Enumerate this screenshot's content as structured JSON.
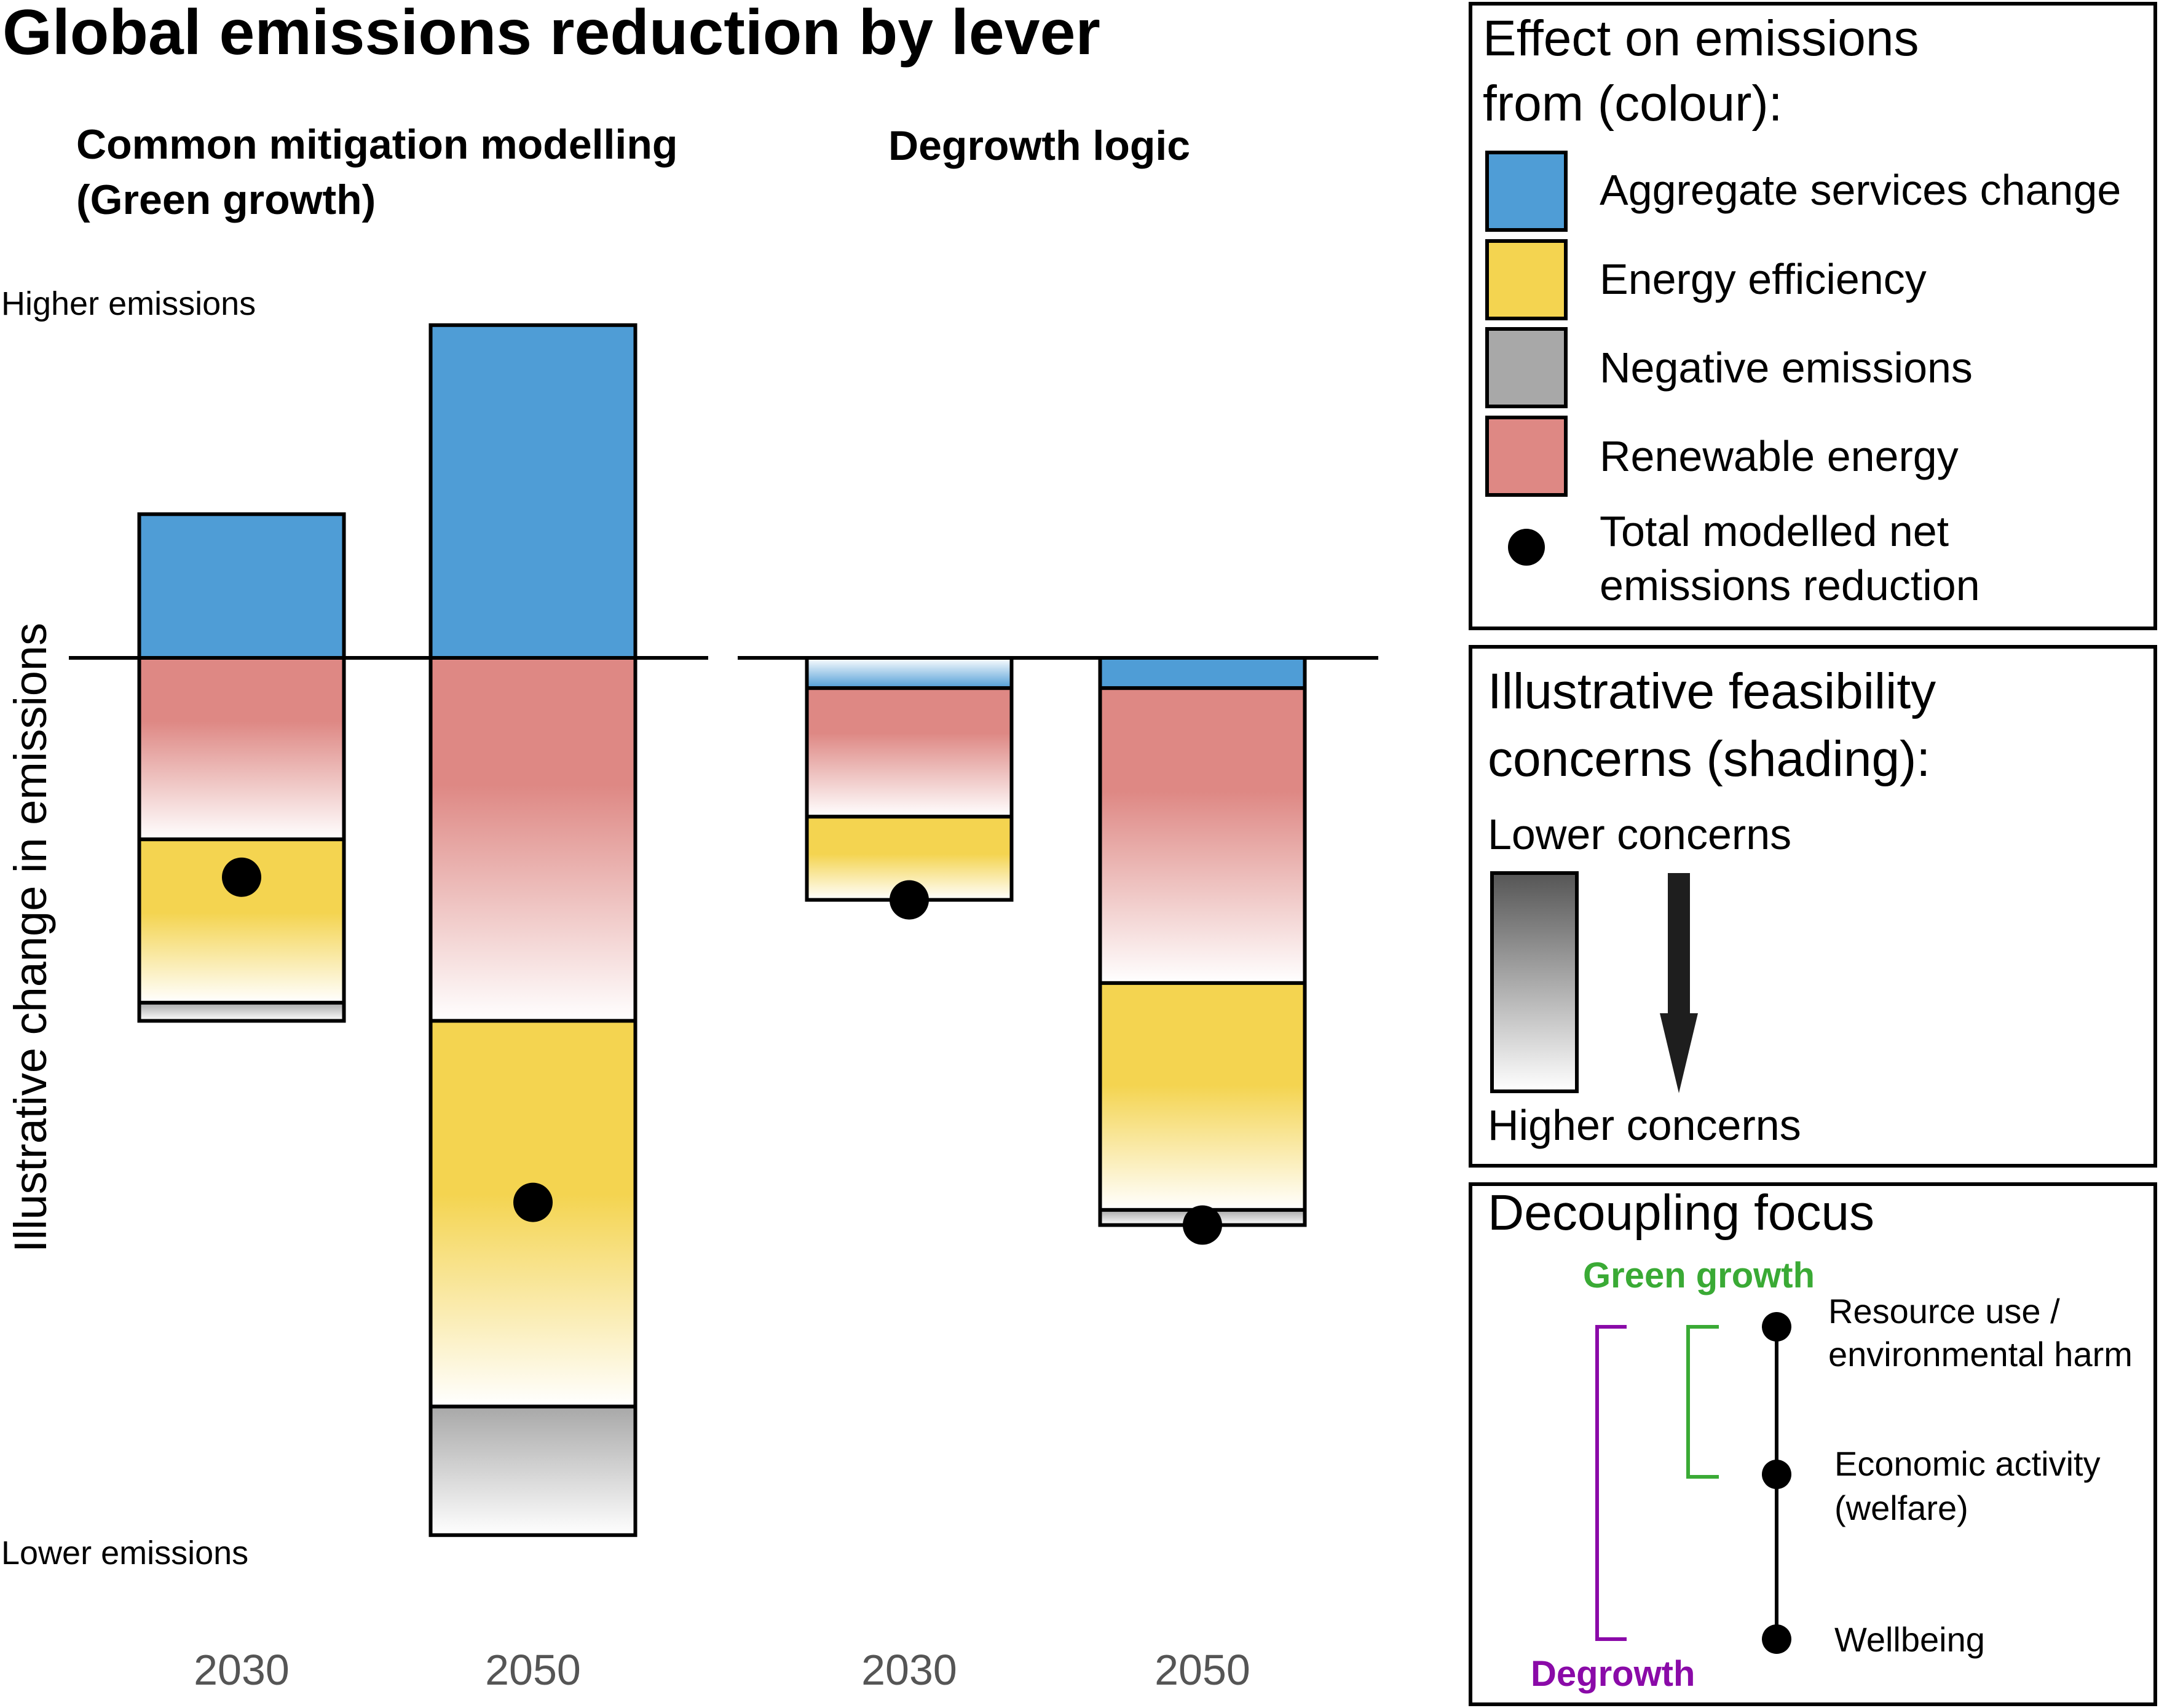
{
  "title": "Global emissions reduction by lever",
  "panels": [
    {
      "title_line1": "Common mitigation modelling",
      "title_line2": "(Green growth)"
    },
    {
      "title_line1": "Degrowth logic",
      "title_line2": ""
    }
  ],
  "axis": {
    "ylabel": "Illustrative change in emissions",
    "top_label": "Higher emissions",
    "bottom_label": "Lower emissions"
  },
  "colors": {
    "aggregate_services": "#4f9dd6",
    "energy_efficiency": "#f4d450",
    "negative_emissions": "#a8a8a8",
    "renewable_energy": "#de8884",
    "green_growth": "#3aaa35",
    "degrowth": "#8a0aa8"
  },
  "chart_data": {
    "type": "bar",
    "stacked": true,
    "ylim": [
      -6.0,
      2.2
    ],
    "baseline": 0,
    "groups": [
      {
        "panel": "Common mitigation modelling (Green growth)",
        "categories": [
          "2030",
          "2050"
        ],
        "series": [
          {
            "name": "Aggregate services change",
            "values": [
              0.95,
              2.2
            ]
          },
          {
            "name": "Renewable energy",
            "values": [
              -1.2,
              -2.4
            ]
          },
          {
            "name": "Energy efficiency",
            "values": [
              -1.08,
              -2.55
            ]
          },
          {
            "name": "Negative emissions",
            "values": [
              -0.12,
              -0.85
            ]
          }
        ],
        "net_total": [
          -1.45,
          -3.6
        ]
      },
      {
        "panel": "Degrowth logic",
        "categories": [
          "2030",
          "2050"
        ],
        "series": [
          {
            "name": "Aggregate services change",
            "values": [
              -0.2,
              -0.2
            ]
          },
          {
            "name": "Renewable energy",
            "values": [
              -0.85,
              -1.95
            ]
          },
          {
            "name": "Energy efficiency",
            "values": [
              -0.55,
              -1.5
            ]
          },
          {
            "name": "Negative emissions",
            "values": [
              0,
              -0.1
            ]
          }
        ],
        "net_total": [
          -1.6,
          -3.75
        ]
      }
    ]
  },
  "legend_colour": {
    "title_line1": "Effect on emissions",
    "title_line2": "from (colour):",
    "items": [
      {
        "label": "Aggregate services change",
        "color_key": "aggregate_services"
      },
      {
        "label": "Energy efficiency",
        "color_key": "energy_efficiency"
      },
      {
        "label": "Negative emissions",
        "color_key": "negative_emissions"
      },
      {
        "label": "Renewable energy",
        "color_key": "renewable_energy"
      }
    ],
    "dot_label_line1": "Total modelled net",
    "dot_label_line2": "emissions reduction"
  },
  "legend_shading": {
    "title_line1": "Illustrative feasibility",
    "title_line2": "concerns (shading):",
    "lower": "Lower concerns",
    "higher": "Higher concerns"
  },
  "decoupling": {
    "title": "Decoupling focus",
    "green_growth": "Green growth",
    "degrowth": "Degrowth",
    "nodes": [
      {
        "line1": "Resource use /",
        "line2": "environmental harm"
      },
      {
        "line1": "Economic activity",
        "line2": "(welfare)"
      },
      {
        "line1": "Wellbeing",
        "line2": ""
      }
    ]
  }
}
